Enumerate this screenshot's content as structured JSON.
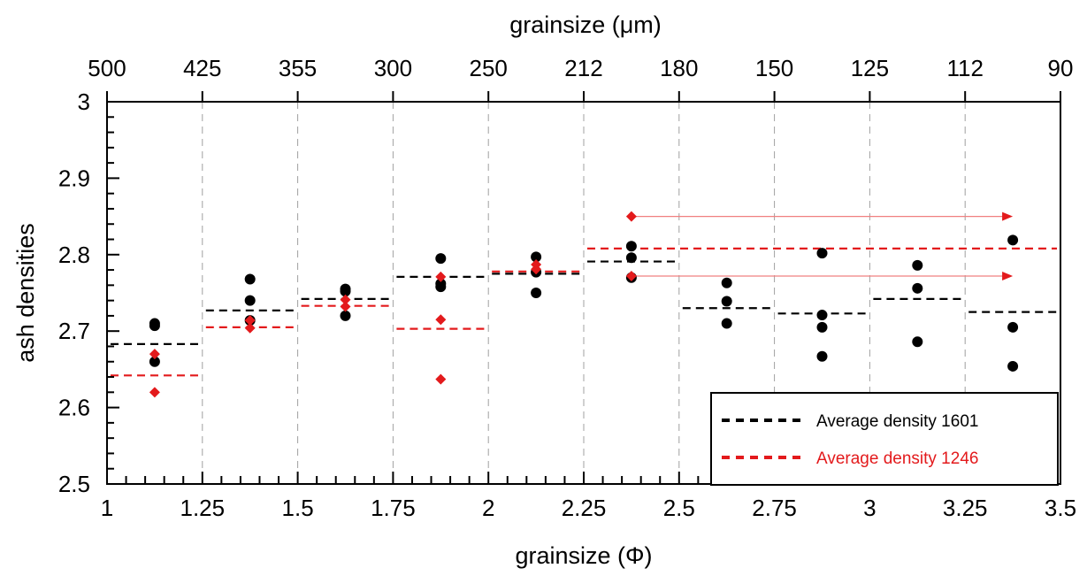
{
  "chart_data": {
    "type": "scatter",
    "xlabel": "grainsize (Φ)",
    "x2label": "grainsize (μm)",
    "ylabel": "ash densities",
    "xlim": [
      1,
      3.5
    ],
    "ylim": [
      2.5,
      3.0
    ],
    "grid": "vertical dashed",
    "legend_position": "bottom-right",
    "xticks": [
      "1",
      "1.25",
      "1.5",
      "1.75",
      "2",
      "2.25",
      "2.5",
      "2.75",
      "3",
      "3.25",
      "3.5"
    ],
    "yticks": [
      "2.5",
      "2.6",
      "2.7",
      "2.8",
      "2.9",
      "3"
    ],
    "top_ticks": [
      {
        "x": 1.0,
        "label": "500"
      },
      {
        "x": 1.25,
        "label": "425"
      },
      {
        "x": 1.5,
        "label": "355"
      },
      {
        "x": 1.75,
        "label": "300"
      },
      {
        "x": 2.0,
        "label": "250"
      },
      {
        "x": 2.25,
        "label": "212"
      },
      {
        "x": 2.5,
        "label": "180"
      },
      {
        "x": 2.75,
        "label": "150"
      },
      {
        "x": 3.0,
        "label": "125"
      },
      {
        "x": 3.25,
        "label": "112"
      },
      {
        "x": 3.5,
        "label": "90"
      }
    ],
    "colors": {
      "black": "#000000",
      "red": "#e31a1c",
      "arrow": "#f08080",
      "grid": "#a0a0a0"
    },
    "series": [
      {
        "name": "1601",
        "marker": "circle",
        "color": "#000000",
        "points": [
          {
            "x": 1.125,
            "y": 2.71
          },
          {
            "x": 1.125,
            "y": 2.707
          },
          {
            "x": 1.125,
            "y": 2.66
          },
          {
            "x": 1.375,
            "y": 2.768
          },
          {
            "x": 1.375,
            "y": 2.74
          },
          {
            "x": 1.375,
            "y": 2.714
          },
          {
            "x": 1.625,
            "y": 2.755
          },
          {
            "x": 1.625,
            "y": 2.752
          },
          {
            "x": 1.625,
            "y": 2.72
          },
          {
            "x": 1.875,
            "y": 2.795
          },
          {
            "x": 1.875,
            "y": 2.762
          },
          {
            "x": 1.875,
            "y": 2.758
          },
          {
            "x": 2.125,
            "y": 2.797
          },
          {
            "x": 2.125,
            "y": 2.777
          },
          {
            "x": 2.125,
            "y": 2.75
          },
          {
            "x": 2.375,
            "y": 2.811
          },
          {
            "x": 2.375,
            "y": 2.796
          },
          {
            "x": 2.375,
            "y": 2.77
          },
          {
            "x": 2.625,
            "y": 2.763
          },
          {
            "x": 2.625,
            "y": 2.739
          },
          {
            "x": 2.625,
            "y": 2.71
          },
          {
            "x": 2.875,
            "y": 2.802
          },
          {
            "x": 2.875,
            "y": 2.721
          },
          {
            "x": 2.875,
            "y": 2.705
          },
          {
            "x": 2.875,
            "y": 2.667
          },
          {
            "x": 3.125,
            "y": 2.786
          },
          {
            "x": 3.125,
            "y": 2.756
          },
          {
            "x": 3.125,
            "y": 2.686
          },
          {
            "x": 3.375,
            "y": 2.819
          },
          {
            "x": 3.375,
            "y": 2.705
          },
          {
            "x": 3.375,
            "y": 2.654
          }
        ],
        "averages": [
          {
            "x0": 1.0,
            "x1": 1.25,
            "y": 2.683
          },
          {
            "x0": 1.25,
            "x1": 1.5,
            "y": 2.727
          },
          {
            "x0": 1.5,
            "x1": 1.75,
            "y": 2.742
          },
          {
            "x0": 1.75,
            "x1": 2.0,
            "y": 2.771
          },
          {
            "x0": 2.0,
            "x1": 2.25,
            "y": 2.775
          },
          {
            "x0": 2.25,
            "x1": 2.5,
            "y": 2.791
          },
          {
            "x0": 2.5,
            "x1": 2.75,
            "y": 2.73
          },
          {
            "x0": 2.75,
            "x1": 3.0,
            "y": 2.723
          },
          {
            "x0": 3.0,
            "x1": 3.25,
            "y": 2.742
          },
          {
            "x0": 3.25,
            "x1": 3.5,
            "y": 2.725
          }
        ]
      },
      {
        "name": "1246",
        "marker": "diamond",
        "color": "#e31a1c",
        "points": [
          {
            "x": 1.125,
            "y": 2.67
          },
          {
            "x": 1.125,
            "y": 2.62
          },
          {
            "x": 1.375,
            "y": 2.714
          },
          {
            "x": 1.375,
            "y": 2.704
          },
          {
            "x": 1.625,
            "y": 2.741
          },
          {
            "x": 1.625,
            "y": 2.732
          },
          {
            "x": 1.875,
            "y": 2.771
          },
          {
            "x": 1.875,
            "y": 2.715
          },
          {
            "x": 1.875,
            "y": 2.637
          },
          {
            "x": 2.125,
            "y": 2.787
          },
          {
            "x": 2.125,
            "y": 2.781
          },
          {
            "x": 2.375,
            "y": 2.85
          },
          {
            "x": 2.375,
            "y": 2.772
          }
        ],
        "averages": [
          {
            "x0": 1.0,
            "x1": 1.25,
            "y": 2.642
          },
          {
            "x0": 1.25,
            "x1": 1.5,
            "y": 2.705
          },
          {
            "x0": 1.5,
            "x1": 1.75,
            "y": 2.733
          },
          {
            "x0": 1.75,
            "x1": 2.0,
            "y": 2.703
          },
          {
            "x0": 2.0,
            "x1": 2.25,
            "y": 2.778
          },
          {
            "x0": 2.25,
            "x1": 3.5,
            "y": 2.808
          }
        ]
      }
    ],
    "arrows": [
      {
        "x0": 2.375,
        "x1": 3.375,
        "y": 2.85
      },
      {
        "x0": 2.375,
        "x1": 3.375,
        "y": 2.772
      }
    ],
    "legend": [
      {
        "label": "Average density 1601",
        "color": "#000000"
      },
      {
        "label": "Average density 1246",
        "color": "#e31a1c"
      }
    ]
  }
}
